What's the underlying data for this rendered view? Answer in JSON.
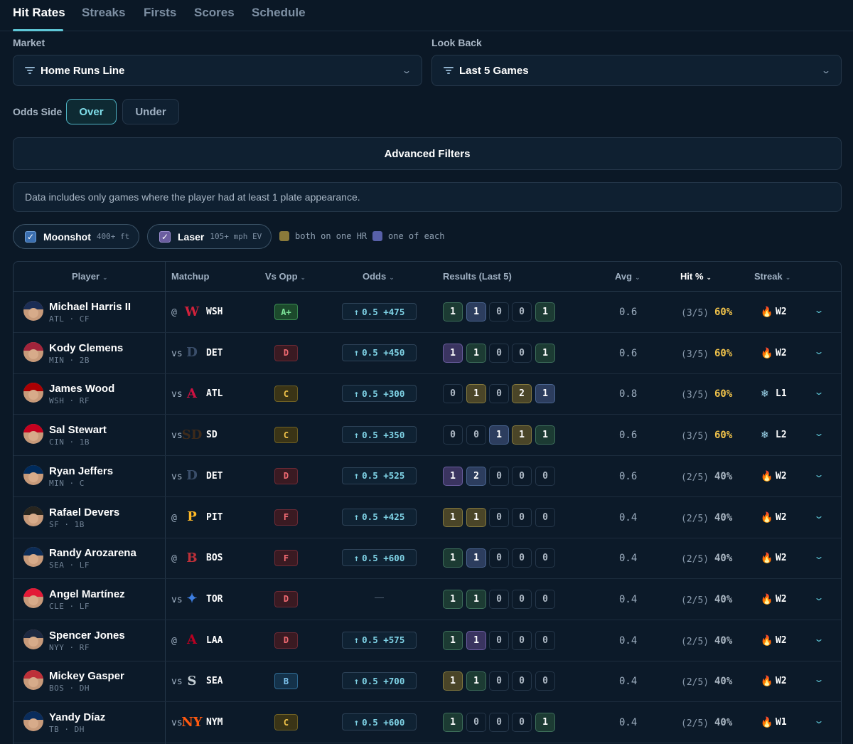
{
  "tabs": [
    "Hit Rates",
    "Streaks",
    "Firsts",
    "Scores",
    "Schedule"
  ],
  "market": {
    "label": "Market",
    "value": "Home Runs Line"
  },
  "lookback": {
    "label": "Look Back",
    "value": "Last 5 Games"
  },
  "odds_side": {
    "label": "Odds Side",
    "over": "Over",
    "under": "Under",
    "selected": "Over"
  },
  "advanced_filters": "Advanced Filters",
  "notice": "Data includes only games where the player had at least 1 plate appearance.",
  "chips": {
    "moonshot": {
      "name": "Moonshot",
      "sub": "400+ ft",
      "checked": true
    },
    "laser": {
      "name": "Laser",
      "sub": "105+ mph EV",
      "checked": true
    },
    "legend_both": "both on one HR",
    "legend_each": "one of each"
  },
  "colors": {
    "accent": "#5fc8d8",
    "hr_gold": "#f0c24a",
    "hr_gray": "#aab6c2"
  },
  "table": {
    "headers": {
      "player": "Player",
      "matchup": "Matchup",
      "vs_opp": "Vs Opp",
      "odds": "Odds",
      "results": "Results (Last 5)",
      "avg": "Avg",
      "hit": "Hit %",
      "streak": "Streak"
    },
    "rows": [
      {
        "name": "Michael Harris II",
        "meta": "ATL · CF",
        "pre": "@",
        "team": "WSH",
        "logo": "W",
        "logo_color": "#d1213b",
        "grade": "A+",
        "odds": "0.5 +475",
        "results": [
          {
            "v": "1",
            "c": "g"
          },
          {
            "v": "1",
            "c": "b"
          },
          {
            "v": "0",
            "c": "z"
          },
          {
            "v": "0",
            "c": "z"
          },
          {
            "v": "1",
            "c": "g"
          }
        ],
        "avg": "0.6",
        "frac": "(3/5)",
        "pct": "60%",
        "streak_icon": "fire-icon",
        "streak": "W2",
        "cap": "#1b2d55"
      },
      {
        "name": "Kody Clemens",
        "meta": "MIN · 2B",
        "pre": "vs",
        "team": "DET",
        "logo": "D",
        "logo_color": "#3a4e6a",
        "grade": "D",
        "odds": "0.5 +450",
        "results": [
          {
            "v": "1",
            "c": "p"
          },
          {
            "v": "1",
            "c": "g"
          },
          {
            "v": "0",
            "c": "z"
          },
          {
            "v": "0",
            "c": "z"
          },
          {
            "v": "1",
            "c": "g"
          }
        ],
        "avg": "0.6",
        "frac": "(3/5)",
        "pct": "60%",
        "streak_icon": "fire-icon",
        "streak": "W2",
        "cap": "#a3243b"
      },
      {
        "name": "James Wood",
        "meta": "WSH · RF",
        "pre": "vs",
        "team": "ATL",
        "logo": "A",
        "logo_color": "#ce1141",
        "grade": "C",
        "odds": "0.5 +300",
        "results": [
          {
            "v": "0",
            "c": "z"
          },
          {
            "v": "1",
            "c": "y"
          },
          {
            "v": "0",
            "c": "z"
          },
          {
            "v": "2",
            "c": "y"
          },
          {
            "v": "1",
            "c": "b"
          }
        ],
        "avg": "0.8",
        "frac": "(3/5)",
        "pct": "60%",
        "streak_icon": "snowflake-icon",
        "streak": "L1",
        "cap": "#ab0003"
      },
      {
        "name": "Sal Stewart",
        "meta": "CIN · 1B",
        "pre": "vs",
        "team": "SD",
        "logo": "SD",
        "logo_color": "#3d2a1a",
        "grade": "C",
        "odds": "0.5 +350",
        "results": [
          {
            "v": "0",
            "c": "z"
          },
          {
            "v": "0",
            "c": "z"
          },
          {
            "v": "1",
            "c": "b"
          },
          {
            "v": "1",
            "c": "y"
          },
          {
            "v": "1",
            "c": "g"
          }
        ],
        "avg": "0.6",
        "frac": "(3/5)",
        "pct": "60%",
        "streak_icon": "snowflake-icon",
        "streak": "L2",
        "cap": "#c6011f"
      },
      {
        "name": "Ryan Jeffers",
        "meta": "MIN · C",
        "pre": "vs",
        "team": "DET",
        "logo": "D",
        "logo_color": "#3a4e6a",
        "grade": "D",
        "odds": "0.5 +525",
        "results": [
          {
            "v": "1",
            "c": "p"
          },
          {
            "v": "2",
            "c": "b"
          },
          {
            "v": "0",
            "c": "z"
          },
          {
            "v": "0",
            "c": "z"
          },
          {
            "v": "0",
            "c": "z"
          }
        ],
        "avg": "0.6",
        "frac": "(2/5)",
        "pct": "40%",
        "streak_icon": "fire-icon",
        "streak": "W2",
        "cap": "#002b5c"
      },
      {
        "name": "Rafael Devers",
        "meta": "SF · 1B",
        "pre": "@",
        "team": "PIT",
        "logo": "P",
        "logo_color": "#fdb827",
        "grade": "F",
        "odds": "0.5 +425",
        "results": [
          {
            "v": "1",
            "c": "y"
          },
          {
            "v": "1",
            "c": "y"
          },
          {
            "v": "0",
            "c": "z"
          },
          {
            "v": "0",
            "c": "z"
          },
          {
            "v": "0",
            "c": "z"
          }
        ],
        "avg": "0.4",
        "frac": "(2/5)",
        "pct": "40%",
        "streak_icon": "fire-icon",
        "streak": "W2",
        "cap": "#27251f"
      },
      {
        "name": "Randy Arozarena",
        "meta": "SEA · LF",
        "pre": "@",
        "team": "BOS",
        "logo": "B",
        "logo_color": "#bd3039",
        "grade": "F",
        "odds": "0.5 +600",
        "results": [
          {
            "v": "1",
            "c": "g"
          },
          {
            "v": "1",
            "c": "b"
          },
          {
            "v": "0",
            "c": "z"
          },
          {
            "v": "0",
            "c": "z"
          },
          {
            "v": "0",
            "c": "z"
          }
        ],
        "avg": "0.4",
        "frac": "(2/5)",
        "pct": "40%",
        "streak_icon": "fire-icon",
        "streak": "W2",
        "cap": "#0c2c56"
      },
      {
        "name": "Angel Martínez",
        "meta": "CLE · LF",
        "pre": "vs",
        "team": "TOR",
        "logo": "✦",
        "logo_color": "#3d7ee0",
        "grade": "D",
        "odds": "",
        "results": [
          {
            "v": "1",
            "c": "g"
          },
          {
            "v": "1",
            "c": "g"
          },
          {
            "v": "0",
            "c": "z"
          },
          {
            "v": "0",
            "c": "z"
          },
          {
            "v": "0",
            "c": "z"
          }
        ],
        "avg": "0.4",
        "frac": "(2/5)",
        "pct": "40%",
        "streak_icon": "fire-icon",
        "streak": "W2",
        "cap": "#e31937"
      },
      {
        "name": "Spencer Jones",
        "meta": "NYY · RF",
        "pre": "@",
        "team": "LAA",
        "logo": "A",
        "logo_color": "#ba0021",
        "grade": "D",
        "odds": "0.5 +575",
        "results": [
          {
            "v": "1",
            "c": "g"
          },
          {
            "v": "1",
            "c": "p"
          },
          {
            "v": "0",
            "c": "z"
          },
          {
            "v": "0",
            "c": "z"
          },
          {
            "v": "0",
            "c": "z"
          }
        ],
        "avg": "0.4",
        "frac": "(2/5)",
        "pct": "40%",
        "streak_icon": "fire-icon",
        "streak": "W2",
        "cap": "#1c2841"
      },
      {
        "name": "Mickey Gasper",
        "meta": "BOS · DH",
        "pre": "vs",
        "team": "SEA",
        "logo": "S",
        "logo_color": "#c4ced4",
        "grade": "B",
        "odds": "0.5 +700",
        "results": [
          {
            "v": "1",
            "c": "y"
          },
          {
            "v": "1",
            "c": "g"
          },
          {
            "v": "0",
            "c": "z"
          },
          {
            "v": "0",
            "c": "z"
          },
          {
            "v": "0",
            "c": "z"
          }
        ],
        "avg": "0.4",
        "frac": "(2/5)",
        "pct": "40%",
        "streak_icon": "fire-icon",
        "streak": "W2",
        "cap": "#bd3039"
      },
      {
        "name": "Yandy Díaz",
        "meta": "TB · DH",
        "pre": "vs",
        "team": "NYM",
        "logo": "NY",
        "logo_color": "#ff5910",
        "grade": "C",
        "odds": "0.5 +600",
        "results": [
          {
            "v": "1",
            "c": "g"
          },
          {
            "v": "0",
            "c": "z"
          },
          {
            "v": "0",
            "c": "z"
          },
          {
            "v": "0",
            "c": "z"
          },
          {
            "v": "1",
            "c": "g"
          }
        ],
        "avg": "0.4",
        "frac": "(2/5)",
        "pct": "40%",
        "streak_icon": "fire-icon",
        "streak": "W1",
        "cap": "#092c5c"
      }
    ]
  }
}
